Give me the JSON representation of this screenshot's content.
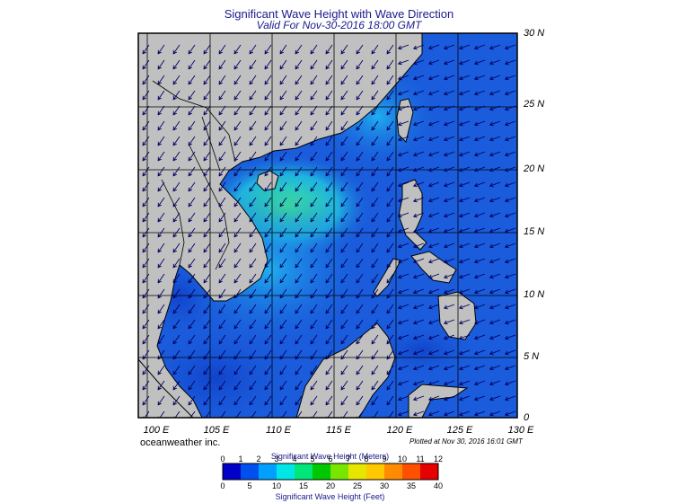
{
  "header": {
    "title": "Significant Wave Height with Wave Direction",
    "subtitle": "Valid For Nov-30-2016 18:00 GMT"
  },
  "map": {
    "lat_labels": [
      "30 N",
      "25 N",
      "20 N",
      "15 N",
      "10 N",
      "5 N",
      "0"
    ],
    "lon_labels": [
      "100 E",
      "105 E",
      "110 E",
      "115 E",
      "120 E",
      "125 E",
      "130 E"
    ],
    "extent": {
      "lon_min": 99,
      "lon_max": 130,
      "lat_min": 0,
      "lat_max": 30
    },
    "land_color": "#c0c0c0",
    "ocean_base_color": "#1a5cdc",
    "high_wave_color": "#33e0a0",
    "arrow_color": "#000060"
  },
  "footer": {
    "credit": "oceanweather inc.",
    "plotted": "Plotted at Nov 30, 2016 16:01 GMT"
  },
  "colorbar": {
    "title_meters": "Significant Wave Height (Meters)",
    "title_feet": "Significant Wave Height (Feet)",
    "meter_ticks": [
      "0",
      "1",
      "2",
      "3",
      "4",
      "5",
      "6",
      "7",
      "8",
      "9",
      "10",
      "11",
      "12"
    ],
    "feet_ticks": [
      "0",
      "5",
      "10",
      "15",
      "20",
      "25",
      "30",
      "35",
      "40"
    ],
    "colors": [
      "#0000c8",
      "#0050f0",
      "#00a0ff",
      "#00e6e6",
      "#00e678",
      "#00c800",
      "#78e600",
      "#e6e600",
      "#ffc800",
      "#ff8c00",
      "#ff5000",
      "#e60000"
    ]
  }
}
